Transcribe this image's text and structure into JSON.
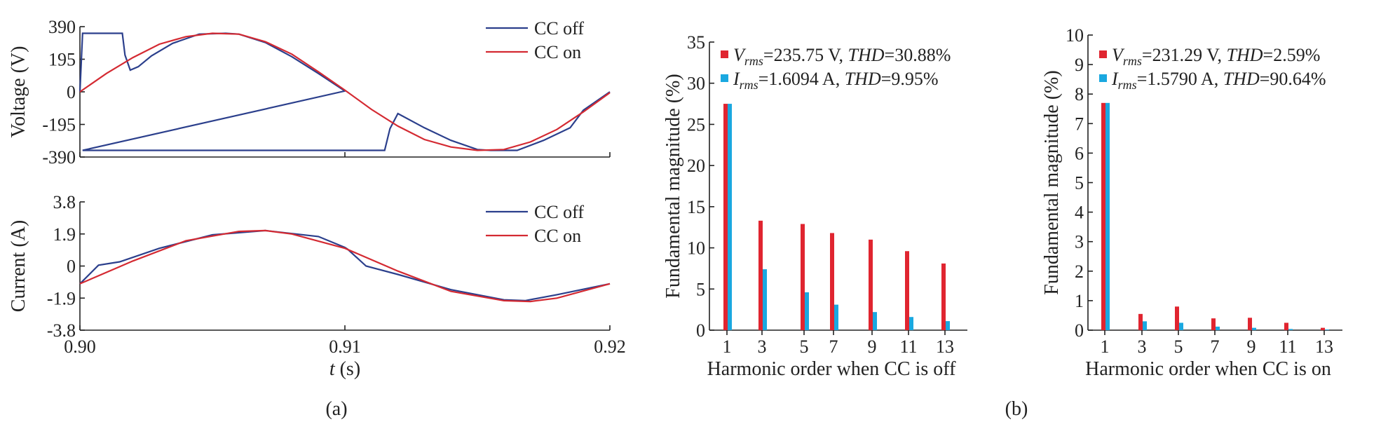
{
  "captions": {
    "a": "(a)",
    "b": "(b)"
  },
  "colors": {
    "cc_off": "#2b3f8c",
    "cc_on": "#d42a32",
    "v_bar": "#e02530",
    "i_bar": "#1aa8e0"
  },
  "chart_data": [
    {
      "id": "voltage",
      "type": "line",
      "xlabel": "",
      "ylabel": "Voltage (V)",
      "xlim": [
        0.9,
        0.92
      ],
      "ylim": [
        -390,
        390
      ],
      "yticks": [
        "390",
        "195",
        "0",
        "-195",
        "-390"
      ],
      "legend": "top-right",
      "series": [
        {
          "name": "CC off",
          "x": [
            0.9,
            0.9001,
            0.9016,
            0.9017,
            0.9019,
            0.9022,
            0.9027,
            0.9035,
            0.9045,
            0.9055,
            0.906,
            0.907,
            0.908,
            0.909,
            0.91,
            0.9001,
            0.9101,
            0.9115,
            0.9117,
            0.912,
            0.913,
            0.914,
            0.915,
            0.9155,
            0.9165,
            0.9175,
            0.9185,
            0.919,
            0.92
          ],
          "y": [
            0,
            350,
            350,
            220,
            130,
            150,
            215,
            290,
            345,
            350,
            345,
            295,
            210,
            110,
            5,
            -350,
            -350,
            -350,
            -220,
            -130,
            -215,
            -290,
            -345,
            -350,
            -350,
            -290,
            -215,
            -110,
            0
          ]
        },
        {
          "name": "CC on",
          "x": [
            0.9,
            0.901,
            0.902,
            0.903,
            0.904,
            0.905,
            0.906,
            0.907,
            0.908,
            0.909,
            0.91,
            0.911,
            0.912,
            0.913,
            0.914,
            0.915,
            0.916,
            0.917,
            0.918,
            0.919,
            0.92
          ],
          "y": [
            0,
            110,
            205,
            285,
            330,
            350,
            345,
            300,
            225,
            120,
            10,
            -105,
            -205,
            -285,
            -330,
            -350,
            -345,
            -300,
            -225,
            -120,
            -5
          ]
        }
      ]
    },
    {
      "id": "current",
      "type": "line",
      "xlabel": "t (s)",
      "ylabel": "Current (A)",
      "xlim": [
        0.9,
        0.92
      ],
      "ylim": [
        -3.8,
        3.8
      ],
      "xticks": [
        "0.90",
        "0.91",
        "0.92"
      ],
      "yticks": [
        "3.8",
        "1.9",
        "0",
        "-1.9",
        "-3.8"
      ],
      "legend": "top-right",
      "series": [
        {
          "name": "CC off",
          "x": [
            0.9,
            0.9007,
            0.9015,
            0.903,
            0.905,
            0.907,
            0.909,
            0.91,
            0.9101,
            0.9108,
            0.912,
            0.914,
            0.916,
            0.9168,
            0.918,
            0.92
          ],
          "y": [
            -1.05,
            0.05,
            0.25,
            1.05,
            1.85,
            2.1,
            1.75,
            1.1,
            1.0,
            0.0,
            -0.5,
            -1.4,
            -2.0,
            -2.05,
            -1.7,
            -1.05
          ]
        },
        {
          "name": "CC on",
          "x": [
            0.9,
            0.902,
            0.904,
            0.906,
            0.907,
            0.908,
            0.91,
            0.912,
            0.914,
            0.916,
            0.917,
            0.918,
            0.92
          ],
          "y": [
            -1.05,
            0.3,
            1.5,
            2.05,
            2.1,
            1.9,
            1.05,
            -0.3,
            -1.5,
            -2.05,
            -2.1,
            -1.9,
            -1.05
          ]
        }
      ]
    },
    {
      "id": "harmonics-off",
      "type": "bar",
      "xlabel": "Harmonic order when CC is off",
      "ylabel": "Fundamental magnitude (%)",
      "ylim": [
        0,
        35
      ],
      "yticks": [
        0,
        5,
        10,
        15,
        20,
        25,
        30,
        35
      ],
      "categories": [
        "1",
        "3",
        "5",
        "7",
        "9",
        "11",
        "13"
      ],
      "legend": "top-right",
      "series": [
        {
          "name": "V",
          "subscript": "rms",
          "value_text": "=235.75 V, ",
          "thd_label": "THD",
          "thd_text": "=30.88%",
          "values": [
            27.5,
            13.3,
            12.9,
            11.8,
            11.0,
            9.6,
            8.1
          ]
        },
        {
          "name": "I",
          "subscript": "rms",
          "value_text": "=1.6094 A, ",
          "thd_label": "THD",
          "thd_text": "=9.95%",
          "values": [
            27.5,
            7.4,
            4.6,
            3.1,
            2.2,
            1.6,
            1.1
          ]
        }
      ]
    },
    {
      "id": "harmonics-on",
      "type": "bar",
      "xlabel": "Harmonic order when CC is on",
      "ylabel": "Fundamental magnitude (%)",
      "ylim": [
        0,
        10
      ],
      "yticks": [
        0,
        1,
        2,
        3,
        4,
        5,
        6,
        7,
        8,
        9,
        10
      ],
      "categories": [
        "1",
        "3",
        "5",
        "7",
        "9",
        "11",
        "13"
      ],
      "legend": "top-right",
      "series": [
        {
          "name": "V",
          "subscript": "rms",
          "value_text": "=231.29 V, ",
          "thd_label": "THD",
          "thd_text": "=2.59%",
          "values": [
            7.7,
            0.55,
            0.8,
            0.4,
            0.42,
            0.25,
            0.08
          ]
        },
        {
          "name": "I",
          "subscript": "rms",
          "value_text": "=1.5790 A, ",
          "thd_label": "THD",
          "thd_text": "=90.64%",
          "values": [
            7.7,
            0.3,
            0.25,
            0.12,
            0.08,
            0.04,
            0.02
          ]
        }
      ]
    }
  ]
}
